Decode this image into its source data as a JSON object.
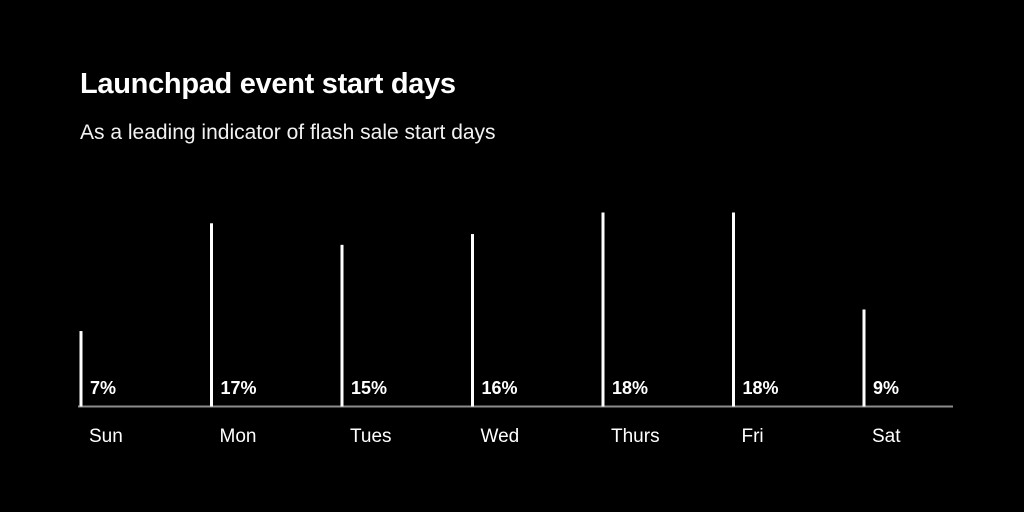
{
  "chart_data": {
    "type": "bar",
    "title": "Launchpad event start days",
    "subtitle": "As a leading indicator of flash sale start days",
    "categories": [
      "Sun",
      "Mon",
      "Tues",
      "Wed",
      "Thurs",
      "Fri",
      "Sat"
    ],
    "values": [
      7,
      17,
      15,
      16,
      18,
      18,
      9
    ],
    "value_labels": [
      "7%",
      "17%",
      "15%",
      "16%",
      "18%",
      "18%",
      "9%"
    ],
    "unit": "%",
    "ylim": [
      0,
      18
    ],
    "grid": false,
    "legend": "none",
    "colors": {
      "background": "#000000",
      "bar": "#ffffff",
      "baseline": "#8c8c8c",
      "text": "#ffffff"
    }
  }
}
